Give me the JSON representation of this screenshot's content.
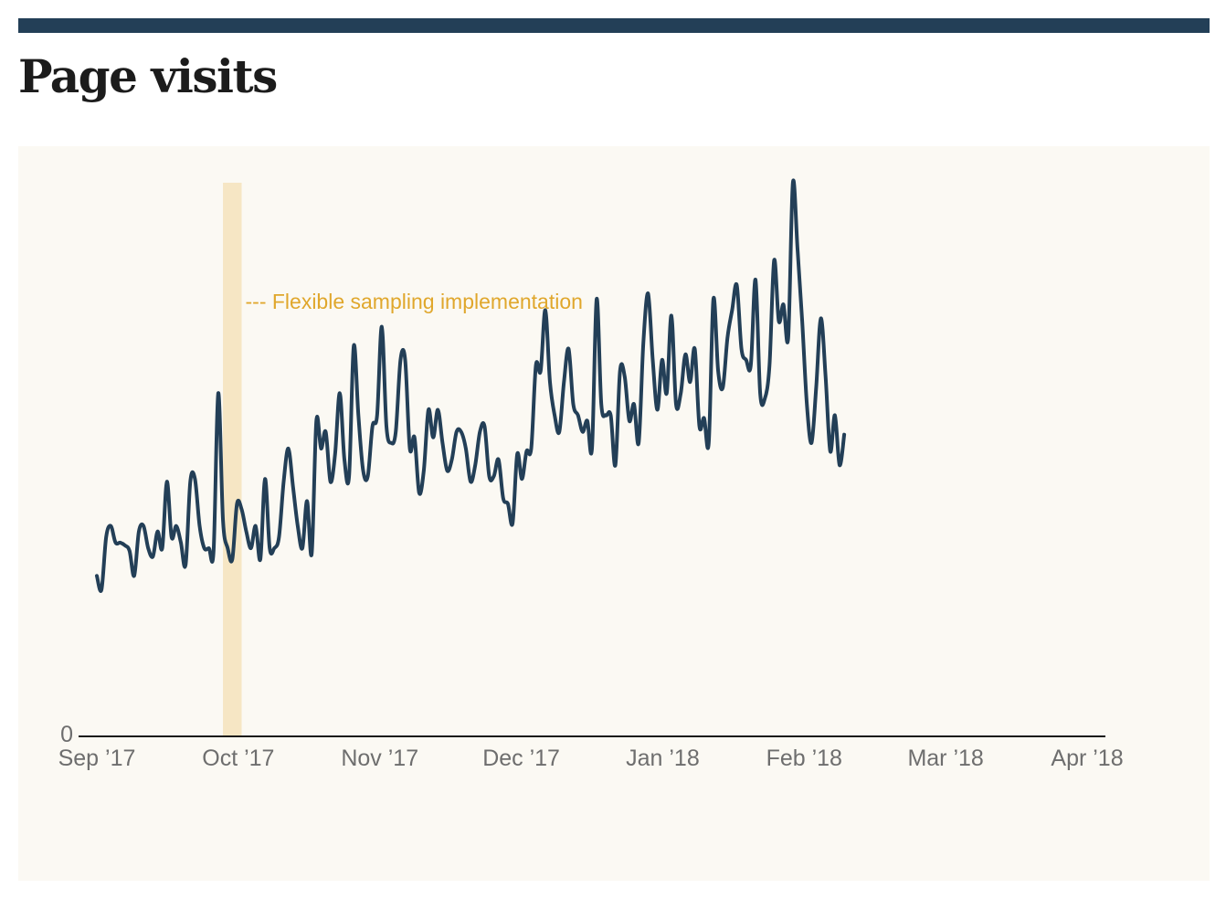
{
  "chart_data": {
    "type": "line",
    "title": "Page visits",
    "xlabel": "",
    "ylabel": "",
    "x_ticks": [
      "Sep ’17",
      "Oct ’17",
      "Nov ’17",
      "Dec ’17",
      "Jan ’18",
      "Feb ’18",
      "Mar ’18",
      "Apr ’18"
    ],
    "y_ticks": [
      "0"
    ],
    "ylim": [
      0,
      100
    ],
    "x_range_days": [
      0,
      212
    ],
    "annotation": {
      "label": "--- Flexible sampling implementation",
      "start_day": 27,
      "end_day": 31
    },
    "series": [
      {
        "name": "Page visits",
        "color": "#233f57",
        "points": [
          [
            0,
            29
          ],
          [
            1,
            26.5
          ],
          [
            2,
            36
          ],
          [
            3,
            38
          ],
          [
            4,
            35
          ],
          [
            5,
            35
          ],
          [
            6,
            34.5
          ],
          [
            7,
            33.5
          ],
          [
            8,
            29
          ],
          [
            9,
            37
          ],
          [
            10,
            38
          ],
          [
            11,
            34
          ],
          [
            12,
            32.5
          ],
          [
            13,
            37
          ],
          [
            14,
            34
          ],
          [
            15,
            46
          ],
          [
            16,
            36
          ],
          [
            17,
            38
          ],
          [
            18,
            35
          ],
          [
            19,
            31
          ],
          [
            20,
            46
          ],
          [
            21,
            46.5
          ],
          [
            22,
            38
          ],
          [
            23,
            34
          ],
          [
            24,
            34
          ],
          [
            25,
            33.5
          ],
          [
            26,
            62
          ],
          [
            27,
            39
          ],
          [
            28,
            34
          ],
          [
            29,
            32
          ],
          [
            30,
            42
          ],
          [
            31,
            41
          ],
          [
            32,
            37
          ],
          [
            33,
            34
          ],
          [
            34,
            38
          ],
          [
            35,
            32
          ],
          [
            36,
            46.5
          ],
          [
            37,
            34
          ],
          [
            38,
            34
          ],
          [
            39,
            36
          ],
          [
            40,
            46
          ],
          [
            41,
            52
          ],
          [
            42,
            45
          ],
          [
            43,
            38
          ],
          [
            44,
            34
          ],
          [
            45,
            42.5
          ],
          [
            46,
            33
          ],
          [
            47,
            57
          ],
          [
            48,
            52
          ],
          [
            49,
            55
          ],
          [
            50,
            46
          ],
          [
            51,
            51
          ],
          [
            52,
            62
          ],
          [
            53,
            50
          ],
          [
            54,
            47
          ],
          [
            55,
            70.5
          ],
          [
            56,
            58
          ],
          [
            57,
            48
          ],
          [
            58,
            47
          ],
          [
            59,
            56
          ],
          [
            60,
            58
          ],
          [
            61,
            74
          ],
          [
            62,
            56
          ],
          [
            63,
            53
          ],
          [
            64,
            55
          ],
          [
            65,
            68
          ],
          [
            66,
            68
          ],
          [
            67,
            52
          ],
          [
            68,
            54
          ],
          [
            69,
            44
          ],
          [
            70,
            48
          ],
          [
            71,
            59
          ],
          [
            72,
            54
          ],
          [
            73,
            59
          ],
          [
            74,
            53
          ],
          [
            75,
            48
          ],
          [
            76,
            50
          ],
          [
            77,
            55
          ],
          [
            78,
            55
          ],
          [
            79,
            52
          ],
          [
            80,
            46
          ],
          [
            81,
            49
          ],
          [
            82,
            55
          ],
          [
            83,
            56
          ],
          [
            84,
            47
          ],
          [
            85,
            47
          ],
          [
            86,
            50
          ],
          [
            87,
            43
          ],
          [
            88,
            42
          ],
          [
            89,
            38.5
          ],
          [
            90,
            51
          ],
          [
            91,
            46.5
          ],
          [
            92,
            51.5
          ],
          [
            93,
            52
          ],
          [
            94,
            67
          ],
          [
            95,
            66
          ],
          [
            96,
            77
          ],
          [
            97,
            64
          ],
          [
            98,
            58
          ],
          [
            99,
            55
          ],
          [
            100,
            64
          ],
          [
            101,
            70
          ],
          [
            102,
            60
          ],
          [
            103,
            58
          ],
          [
            104,
            55
          ],
          [
            105,
            57
          ],
          [
            106,
            52
          ],
          [
            107,
            79
          ],
          [
            108,
            60
          ],
          [
            109,
            58
          ],
          [
            110,
            58
          ],
          [
            111,
            49
          ],
          [
            112,
            66
          ],
          [
            113,
            65
          ],
          [
            114,
            57
          ],
          [
            115,
            60
          ],
          [
            116,
            53
          ],
          [
            117,
            71
          ],
          [
            118,
            80
          ],
          [
            119,
            68
          ],
          [
            120,
            59
          ],
          [
            121,
            68
          ],
          [
            122,
            62
          ],
          [
            123,
            76
          ],
          [
            124,
            60
          ],
          [
            125,
            62
          ],
          [
            126,
            69
          ],
          [
            127,
            64
          ],
          [
            128,
            70
          ],
          [
            129,
            56
          ],
          [
            130,
            57.5
          ],
          [
            131,
            53
          ],
          [
            132,
            79
          ],
          [
            133,
            66
          ],
          [
            134,
            63
          ],
          [
            135,
            72
          ],
          [
            136,
            77
          ],
          [
            137,
            81.5
          ],
          [
            138,
            70
          ],
          [
            139,
            68
          ],
          [
            140,
            67
          ],
          [
            141,
            82.5
          ],
          [
            142,
            62
          ],
          [
            143,
            61
          ],
          [
            144,
            67
          ],
          [
            145,
            86
          ],
          [
            146,
            75
          ],
          [
            147,
            78
          ],
          [
            148,
            72
          ],
          [
            149,
            100
          ],
          [
            150,
            88
          ],
          [
            151,
            75
          ],
          [
            152,
            60
          ],
          [
            153,
            53
          ],
          [
            154,
            63
          ],
          [
            155,
            75.5
          ],
          [
            156,
            65
          ],
          [
            157,
            51.5
          ],
          [
            158,
            58
          ],
          [
            159,
            49
          ],
          [
            160,
            54.5
          ]
        ]
      }
    ]
  }
}
